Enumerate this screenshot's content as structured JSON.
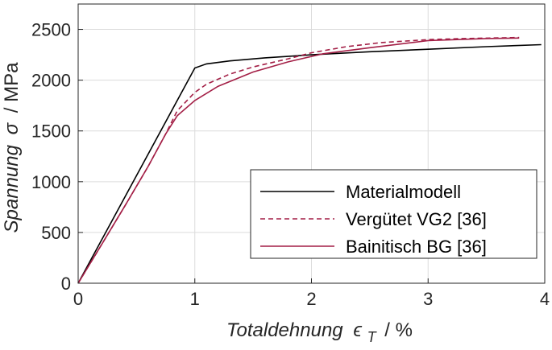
{
  "chart_data": {
    "type": "line",
    "xlabel": {
      "main": "Totaldehnung",
      "symbol": "ϵ",
      "subscript": "T",
      "unit": "/ %"
    },
    "ylabel": {
      "main": "Spannung",
      "symbol": "σ",
      "unit": "/ MPa"
    },
    "xlim": [
      0,
      4
    ],
    "ylim": [
      0,
      2750
    ],
    "x_ticks": [
      "0",
      "1",
      "2",
      "3",
      "4"
    ],
    "y_ticks": [
      "0",
      "500",
      "1000",
      "1500",
      "2000",
      "2500"
    ],
    "grid": true,
    "legend_position": "lower-right",
    "series": [
      {
        "name": "Materialmodell",
        "color": "#000000",
        "dash": "solid",
        "points": [
          [
            0,
            0
          ],
          [
            1.0,
            2120
          ],
          [
            1.1,
            2160
          ],
          [
            1.3,
            2190
          ],
          [
            1.6,
            2220
          ],
          [
            2.0,
            2250
          ],
          [
            2.5,
            2280
          ],
          [
            3.0,
            2305
          ],
          [
            3.5,
            2330
          ],
          [
            3.97,
            2350
          ]
        ]
      },
      {
        "name": "Vergütet VG2 [36]",
        "color": "#a31f46",
        "dash": "dashed",
        "points": [
          [
            0,
            0
          ],
          [
            0.2,
            380
          ],
          [
            0.4,
            760
          ],
          [
            0.6,
            1150
          ],
          [
            0.75,
            1470
          ],
          [
            0.85,
            1700
          ],
          [
            1.0,
            1880
          ],
          [
            1.1,
            1960
          ],
          [
            1.3,
            2060
          ],
          [
            1.5,
            2130
          ],
          [
            1.8,
            2210
          ],
          [
            2.0,
            2270
          ],
          [
            2.3,
            2330
          ],
          [
            2.6,
            2370
          ],
          [
            3.0,
            2400
          ],
          [
            3.3,
            2410
          ],
          [
            3.78,
            2420
          ]
        ]
      },
      {
        "name": "Bainitisch BG [36]",
        "color": "#a31f46",
        "dash": "solid",
        "points": [
          [
            0,
            0
          ],
          [
            0.2,
            380
          ],
          [
            0.4,
            760
          ],
          [
            0.6,
            1150
          ],
          [
            0.75,
            1470
          ],
          [
            0.85,
            1650
          ],
          [
            1.0,
            1800
          ],
          [
            1.2,
            1940
          ],
          [
            1.5,
            2080
          ],
          [
            1.8,
            2180
          ],
          [
            2.1,
            2260
          ],
          [
            2.5,
            2320
          ],
          [
            3.0,
            2390
          ],
          [
            3.5,
            2410
          ],
          [
            3.78,
            2415
          ]
        ]
      }
    ]
  }
}
